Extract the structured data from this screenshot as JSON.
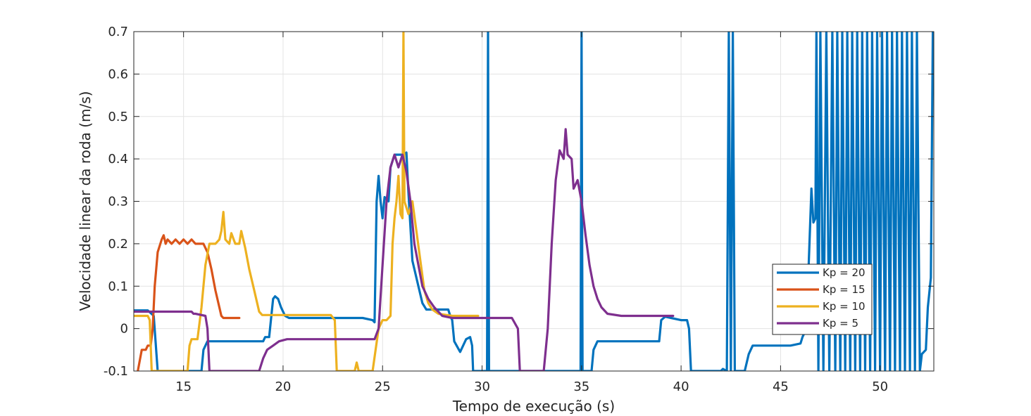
{
  "chart_data": {
    "type": "line",
    "title": "",
    "xlabel": "Tempo de execução (s)",
    "ylabel": "Velocidade linear da roda (m/s)",
    "xlim": [
      12.5,
      52.7
    ],
    "ylim": [
      -0.1,
      0.7
    ],
    "xticks": [
      15,
      20,
      25,
      30,
      35,
      40,
      45,
      50
    ],
    "xtick_labels": [
      "15",
      "20",
      "25",
      "30",
      "35",
      "40",
      "45",
      "50"
    ],
    "yticks": [
      -0.1,
      0,
      0.1,
      0.2,
      0.3,
      0.4,
      0.5,
      0.6,
      0.7
    ],
    "ytick_labels": [
      "-0.1",
      "0",
      "0.1",
      "0.2",
      "0.3",
      "0.4",
      "0.5",
      "0.6",
      "0.7"
    ],
    "grid": true,
    "legend_position": "lower-right",
    "series": [
      {
        "name": "Kp = 20",
        "color": "#0072BD",
        "points": [
          [
            12.5,
            0.043
          ],
          [
            13.2,
            0.043
          ],
          [
            13.5,
            0.03
          ],
          [
            13.7,
            -0.1
          ],
          [
            15.9,
            -0.1
          ],
          [
            16.0,
            -0.05
          ],
          [
            16.2,
            -0.03
          ],
          [
            17.0,
            -0.03
          ],
          [
            18.0,
            -0.03
          ],
          [
            19.0,
            -0.03
          ],
          [
            19.1,
            -0.02
          ],
          [
            19.3,
            -0.02
          ],
          [
            19.5,
            0.07
          ],
          [
            19.6,
            0.076
          ],
          [
            19.75,
            0.07
          ],
          [
            19.9,
            0.05
          ],
          [
            20.1,
            0.03
          ],
          [
            20.3,
            0.025
          ],
          [
            21.0,
            0.025
          ],
          [
            22.0,
            0.025
          ],
          [
            23.0,
            0.025
          ],
          [
            24.0,
            0.025
          ],
          [
            24.5,
            0.02
          ],
          [
            24.6,
            0.015
          ],
          [
            24.7,
            0.3
          ],
          [
            24.8,
            0.36
          ],
          [
            24.9,
            0.3
          ],
          [
            25.0,
            0.26
          ],
          [
            25.1,
            0.31
          ],
          [
            25.3,
            0.3
          ],
          [
            25.4,
            0.38
          ],
          [
            25.6,
            0.41
          ],
          [
            25.8,
            0.41
          ],
          [
            26.0,
            0.41
          ],
          [
            26.2,
            0.415
          ],
          [
            26.3,
            0.32
          ],
          [
            26.5,
            0.16
          ],
          [
            26.8,
            0.1
          ],
          [
            27.0,
            0.06
          ],
          [
            27.2,
            0.045
          ],
          [
            27.5,
            0.045
          ],
          [
            28.0,
            0.045
          ],
          [
            28.3,
            0.045
          ],
          [
            28.4,
            0.03
          ],
          [
            28.5,
            0.02
          ],
          [
            28.6,
            -0.03
          ],
          [
            28.9,
            -0.055
          ],
          [
            29.2,
            -0.025
          ],
          [
            29.4,
            -0.02
          ],
          [
            29.5,
            -0.04
          ],
          [
            29.55,
            -0.1
          ],
          [
            30.25,
            -0.1
          ],
          [
            30.3,
            0.7
          ],
          [
            30.35,
            -0.1
          ],
          [
            34.95,
            -0.1
          ],
          [
            35.0,
            0.7
          ],
          [
            35.05,
            -0.1
          ],
          [
            35.5,
            -0.1
          ],
          [
            35.6,
            -0.05
          ],
          [
            35.8,
            -0.03
          ],
          [
            36.5,
            -0.03
          ],
          [
            37.5,
            -0.03
          ],
          [
            38.5,
            -0.03
          ],
          [
            38.9,
            -0.03
          ],
          [
            39.0,
            0.02
          ],
          [
            39.2,
            0.028
          ],
          [
            39.5,
            0.025
          ],
          [
            40.0,
            0.02
          ],
          [
            40.3,
            0.02
          ],
          [
            40.4,
            0.0
          ],
          [
            40.5,
            -0.1
          ],
          [
            42.0,
            -0.1
          ],
          [
            42.1,
            -0.095
          ],
          [
            42.3,
            -0.1
          ],
          [
            42.4,
            0.7
          ],
          [
            42.5,
            -0.1
          ],
          [
            42.6,
            0.7
          ],
          [
            42.7,
            -0.1
          ],
          [
            43.2,
            -0.1
          ],
          [
            43.4,
            -0.06
          ],
          [
            43.6,
            -0.04
          ],
          [
            44.5,
            -0.04
          ],
          [
            45.5,
            -0.04
          ],
          [
            46.0,
            -0.035
          ],
          [
            46.1,
            -0.02
          ],
          [
            46.3,
            0.0
          ],
          [
            46.45,
            0.2
          ],
          [
            46.55,
            0.33
          ],
          [
            46.65,
            0.25
          ],
          [
            46.75,
            0.26
          ],
          [
            46.8,
            0.7
          ],
          [
            46.9,
            -0.1
          ],
          [
            47.0,
            0.7
          ],
          [
            47.15,
            -0.1
          ],
          [
            47.3,
            0.7
          ],
          [
            47.45,
            -0.1
          ],
          [
            47.6,
            0.7
          ],
          [
            47.75,
            -0.1
          ],
          [
            47.85,
            0.7
          ],
          [
            48.0,
            -0.1
          ],
          [
            48.1,
            0.7
          ],
          [
            48.25,
            -0.1
          ],
          [
            48.35,
            0.7
          ],
          [
            48.5,
            -0.1
          ],
          [
            48.6,
            0.7
          ],
          [
            48.75,
            -0.1
          ],
          [
            48.85,
            0.7
          ],
          [
            49.0,
            -0.1
          ],
          [
            49.1,
            0.7
          ],
          [
            49.25,
            -0.1
          ],
          [
            49.35,
            0.7
          ],
          [
            49.5,
            -0.1
          ],
          [
            49.6,
            0.7
          ],
          [
            49.75,
            -0.1
          ],
          [
            49.85,
            0.7
          ],
          [
            50.0,
            -0.1
          ],
          [
            50.1,
            0.7
          ],
          [
            50.25,
            -0.1
          ],
          [
            50.35,
            0.7
          ],
          [
            50.5,
            -0.1
          ],
          [
            50.6,
            0.7
          ],
          [
            50.75,
            -0.1
          ],
          [
            50.85,
            0.7
          ],
          [
            51.0,
            -0.1
          ],
          [
            51.1,
            0.7
          ],
          [
            51.25,
            -0.1
          ],
          [
            51.35,
            0.7
          ],
          [
            51.5,
            -0.1
          ],
          [
            51.6,
            0.7
          ],
          [
            51.75,
            -0.1
          ],
          [
            51.85,
            0.7
          ],
          [
            52.0,
            -0.1
          ],
          [
            52.1,
            -0.06
          ],
          [
            52.3,
            -0.05
          ],
          [
            52.4,
            0.05
          ],
          [
            52.55,
            0.12
          ],
          [
            52.65,
            0.7
          ]
        ]
      },
      {
        "name": "Kp = 15",
        "color": "#D95319",
        "points": [
          [
            12.7,
            -0.1
          ],
          [
            12.9,
            -0.05
          ],
          [
            13.1,
            -0.05
          ],
          [
            13.2,
            -0.04
          ],
          [
            13.35,
            -0.04
          ],
          [
            13.45,
            0.0
          ],
          [
            13.55,
            0.1
          ],
          [
            13.7,
            0.18
          ],
          [
            13.9,
            0.21
          ],
          [
            14.0,
            0.22
          ],
          [
            14.1,
            0.2
          ],
          [
            14.2,
            0.21
          ],
          [
            14.4,
            0.2
          ],
          [
            14.6,
            0.21
          ],
          [
            14.8,
            0.2
          ],
          [
            15.0,
            0.21
          ],
          [
            15.2,
            0.2
          ],
          [
            15.4,
            0.21
          ],
          [
            15.6,
            0.2
          ],
          [
            15.8,
            0.2
          ],
          [
            16.0,
            0.2
          ],
          [
            16.2,
            0.18
          ],
          [
            16.4,
            0.14
          ],
          [
            16.6,
            0.09
          ],
          [
            16.8,
            0.05
          ],
          [
            16.9,
            0.03
          ],
          [
            17.0,
            0.025
          ],
          [
            17.8,
            0.025
          ]
        ]
      },
      {
        "name": "Kp = 10",
        "color": "#EDB120",
        "points": [
          [
            12.5,
            0.03
          ],
          [
            13.2,
            0.03
          ],
          [
            13.3,
            0.02
          ],
          [
            13.4,
            -0.1
          ],
          [
            14.5,
            -0.1
          ],
          [
            15.2,
            -0.1
          ],
          [
            15.3,
            -0.04
          ],
          [
            15.4,
            -0.025
          ],
          [
            15.7,
            -0.025
          ],
          [
            15.9,
            0.05
          ],
          [
            16.1,
            0.15
          ],
          [
            16.3,
            0.2
          ],
          [
            16.6,
            0.2
          ],
          [
            16.8,
            0.21
          ],
          [
            16.9,
            0.23
          ],
          [
            17.0,
            0.275
          ],
          [
            17.1,
            0.21
          ],
          [
            17.3,
            0.2
          ],
          [
            17.4,
            0.225
          ],
          [
            17.6,
            0.2
          ],
          [
            17.8,
            0.2
          ],
          [
            17.9,
            0.23
          ],
          [
            18.1,
            0.19
          ],
          [
            18.3,
            0.14
          ],
          [
            18.5,
            0.1
          ],
          [
            18.7,
            0.06
          ],
          [
            18.8,
            0.04
          ],
          [
            18.95,
            0.032
          ],
          [
            19.5,
            0.032
          ],
          [
            20.5,
            0.032
          ],
          [
            21.5,
            0.032
          ],
          [
            22.4,
            0.032
          ],
          [
            22.6,
            0.02
          ],
          [
            22.7,
            -0.1
          ],
          [
            23.6,
            -0.1
          ],
          [
            23.7,
            -0.08
          ],
          [
            23.8,
            -0.1
          ],
          [
            24.5,
            -0.1
          ],
          [
            24.8,
            0.0
          ],
          [
            25.0,
            0.02
          ],
          [
            25.2,
            0.02
          ],
          [
            25.4,
            0.03
          ],
          [
            25.5,
            0.2
          ],
          [
            25.6,
            0.26
          ],
          [
            25.7,
            0.3
          ],
          [
            25.8,
            0.36
          ],
          [
            25.9,
            0.27
          ],
          [
            26.0,
            0.26
          ],
          [
            26.05,
            0.7
          ],
          [
            26.1,
            0.3
          ],
          [
            26.3,
            0.27
          ],
          [
            26.5,
            0.3
          ],
          [
            26.7,
            0.23
          ],
          [
            26.9,
            0.16
          ],
          [
            27.1,
            0.09
          ],
          [
            27.3,
            0.06
          ],
          [
            27.5,
            0.045
          ],
          [
            27.8,
            0.035
          ],
          [
            28.5,
            0.03
          ],
          [
            29.0,
            0.03
          ],
          [
            29.8,
            0.03
          ]
        ]
      },
      {
        "name": "Kp = 5",
        "color": "#7E2F8E",
        "points": [
          [
            12.5,
            0.04
          ],
          [
            13.5,
            0.04
          ],
          [
            14.5,
            0.04
          ],
          [
            15.4,
            0.04
          ],
          [
            15.5,
            0.035
          ],
          [
            15.6,
            0.035
          ],
          [
            16.1,
            0.03
          ],
          [
            16.2,
            0.0
          ],
          [
            16.3,
            -0.1
          ],
          [
            18.8,
            -0.1
          ],
          [
            19.0,
            -0.07
          ],
          [
            19.2,
            -0.05
          ],
          [
            19.5,
            -0.04
          ],
          [
            19.8,
            -0.03
          ],
          [
            20.2,
            -0.025
          ],
          [
            21.0,
            -0.025
          ],
          [
            22.0,
            -0.025
          ],
          [
            23.0,
            -0.025
          ],
          [
            24.0,
            -0.025
          ],
          [
            24.6,
            -0.025
          ],
          [
            24.8,
            0.0
          ],
          [
            25.0,
            0.15
          ],
          [
            25.2,
            0.3
          ],
          [
            25.4,
            0.38
          ],
          [
            25.6,
            0.41
          ],
          [
            25.8,
            0.38
          ],
          [
            26.0,
            0.41
          ],
          [
            26.2,
            0.37
          ],
          [
            26.4,
            0.3
          ],
          [
            26.6,
            0.2
          ],
          [
            26.8,
            0.15
          ],
          [
            27.0,
            0.1
          ],
          [
            27.3,
            0.07
          ],
          [
            27.6,
            0.05
          ],
          [
            28.0,
            0.03
          ],
          [
            28.5,
            0.025
          ],
          [
            30.0,
            0.025
          ],
          [
            31.5,
            0.025
          ],
          [
            31.8,
            0.0
          ],
          [
            31.9,
            -0.1
          ],
          [
            33.1,
            -0.1
          ],
          [
            33.3,
            0.0
          ],
          [
            33.5,
            0.2
          ],
          [
            33.7,
            0.35
          ],
          [
            33.9,
            0.42
          ],
          [
            34.1,
            0.4
          ],
          [
            34.2,
            0.47
          ],
          [
            34.3,
            0.41
          ],
          [
            34.5,
            0.4
          ],
          [
            34.6,
            0.33
          ],
          [
            34.8,
            0.35
          ],
          [
            35.0,
            0.3
          ],
          [
            35.2,
            0.22
          ],
          [
            35.4,
            0.15
          ],
          [
            35.6,
            0.1
          ],
          [
            35.8,
            0.07
          ],
          [
            36.0,
            0.05
          ],
          [
            36.3,
            0.035
          ],
          [
            37.0,
            0.03
          ],
          [
            38.0,
            0.03
          ],
          [
            39.0,
            0.03
          ],
          [
            39.6,
            0.03
          ]
        ]
      }
    ]
  }
}
